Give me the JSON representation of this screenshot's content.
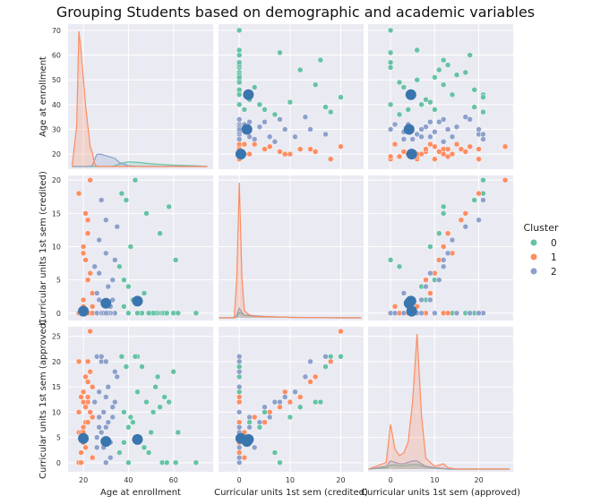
{
  "chart_data": {
    "type": "scatter",
    "title": "Grouping Students based on demographic and academic variables",
    "variables": [
      {
        "label": "Age at enrollment",
        "xlim": [
          13.2,
          77.6
        ],
        "ylim": [
          13.9,
          72.5
        ],
        "xticks": [
          20,
          40,
          60
        ],
        "yticks": [
          20,
          30,
          40,
          50,
          60,
          70
        ]
      },
      {
        "label": "Curricular units 1st sem (credited)",
        "xlim": [
          -4.1,
          24.5
        ],
        "ylim": [
          -1.1,
          20.7
        ],
        "xticks": [
          0,
          10,
          20
        ],
        "yticks": [
          0,
          5,
          10,
          15,
          20
        ]
      },
      {
        "label": "Curricular units 1st sem (approved)",
        "xlim": [
          -5.1,
          27.8
        ],
        "ylim": [
          -1.8,
          26.9
        ],
        "xticks": [
          0,
          10,
          20
        ],
        "yticks": [
          0,
          5,
          10,
          15,
          20,
          25
        ]
      }
    ],
    "legend": {
      "title": "Cluster",
      "placement": "right",
      "entries": [
        "0",
        "1",
        "2"
      ]
    },
    "colors": {
      "0": "#66c2a5",
      "1": "#fc8d62",
      "2": "#8da0cb",
      "centroid": "#3a75ae",
      "panel_bg": "#eaeaf2",
      "grid": "#ffffff"
    },
    "grid": true,
    "point_fields": [
      "age",
      "credited",
      "approved",
      "cluster"
    ],
    "points": [
      [
        18,
        0,
        0,
        1
      ],
      [
        18,
        0,
        6,
        1
      ],
      [
        19,
        0,
        5,
        1
      ],
      [
        19,
        0,
        6,
        1
      ],
      [
        20,
        0,
        7,
        1
      ],
      [
        20,
        1,
        6,
        1
      ],
      [
        21,
        0,
        8,
        1
      ],
      [
        22,
        0,
        12,
        1
      ],
      [
        18,
        0,
        10,
        1
      ],
      [
        19,
        0,
        13,
        1
      ],
      [
        20,
        2,
        5,
        1
      ],
      [
        21,
        0,
        3,
        1
      ],
      [
        22,
        5,
        8,
        1
      ],
      [
        23,
        0,
        18,
        1
      ],
      [
        22,
        0,
        20,
        1
      ],
      [
        23,
        20,
        26,
        1
      ],
      [
        19,
        0,
        0,
        1
      ],
      [
        24,
        3,
        9,
        1
      ],
      [
        20,
        10,
        12,
        1
      ],
      [
        21,
        8,
        11,
        1
      ],
      [
        22,
        12,
        13,
        1
      ],
      [
        19,
        0,
        2,
        1
      ],
      [
        24,
        0,
        15,
        1
      ],
      [
        21,
        15,
        17,
        1
      ],
      [
        18,
        18,
        20,
        1
      ],
      [
        20,
        0,
        4,
        1
      ],
      [
        23,
        6,
        10,
        1
      ],
      [
        24,
        1,
        1,
        1
      ],
      [
        20,
        9,
        14,
        1
      ],
      [
        22,
        14,
        16,
        1
      ],
      [
        26,
        0,
        5,
        2
      ],
      [
        28,
        0,
        6,
        2
      ],
      [
        30,
        0,
        0,
        2
      ],
      [
        32,
        1,
        4,
        2
      ],
      [
        27,
        2,
        7,
        2
      ],
      [
        29,
        0,
        10,
        2
      ],
      [
        31,
        4,
        8,
        2
      ],
      [
        33,
        5,
        11,
        2
      ],
      [
        26,
        0,
        21,
        2
      ],
      [
        28,
        0,
        20,
        2
      ],
      [
        30,
        9,
        13,
        2
      ],
      [
        34,
        0,
        18,
        2
      ],
      [
        25,
        7,
        12,
        2
      ],
      [
        27,
        11,
        14,
        2
      ],
      [
        35,
        13,
        17,
        2
      ],
      [
        29,
        0,
        3,
        2
      ],
      [
        32,
        0,
        1,
        2
      ],
      [
        26,
        3,
        3,
        2
      ],
      [
        30,
        14,
        20,
        2
      ],
      [
        28,
        17,
        21,
        2
      ],
      [
        33,
        2,
        9,
        2
      ],
      [
        31,
        0,
        15,
        2
      ],
      [
        27,
        6,
        9,
        2
      ],
      [
        34,
        8,
        12,
        2
      ],
      [
        30,
        0,
        7,
        2
      ],
      [
        40,
        0,
        0,
        0
      ],
      [
        45,
        0,
        5,
        0
      ],
      [
        50,
        0,
        6,
        0
      ],
      [
        38,
        1,
        4,
        0
      ],
      [
        42,
        2,
        8,
        0
      ],
      [
        55,
        0,
        0,
        0
      ],
      [
        60,
        0,
        18,
        0
      ],
      [
        44,
        0,
        21,
        0
      ],
      [
        46,
        0,
        19,
        0
      ],
      [
        53,
        0,
        17,
        0
      ],
      [
        52,
        0,
        15,
        0
      ],
      [
        56,
        0,
        13,
        0
      ],
      [
        62,
        0,
        6,
        0
      ],
      [
        70,
        0,
        0,
        0
      ],
      [
        38,
        5,
        10,
        0
      ],
      [
        41,
        10,
        9,
        0
      ],
      [
        36,
        7,
        2,
        0
      ],
      [
        48,
        15,
        12,
        0
      ],
      [
        58,
        16,
        12,
        0
      ],
      [
        43,
        20,
        21,
        0
      ],
      [
        39,
        17,
        19,
        0
      ],
      [
        37,
        18,
        21,
        0
      ],
      [
        47,
        3,
        3,
        0
      ],
      [
        54,
        12,
        11,
        0
      ],
      [
        51,
        0,
        10,
        0
      ],
      [
        40,
        4,
        7,
        0
      ],
      [
        61,
        8,
        0,
        0
      ],
      [
        57,
        0,
        0,
        0
      ],
      [
        44,
        0,
        14,
        0
      ],
      [
        49,
        0,
        2,
        0
      ]
    ],
    "centroids": [
      [
        20,
        0.3,
        4.8
      ],
      [
        30,
        1.5,
        4.2
      ],
      [
        44,
        1.8,
        4.6
      ]
    ],
    "density": [
      {
        "x": [
          15,
          17,
          18,
          19,
          20,
          21,
          22,
          23,
          24,
          25,
          26,
          28,
          30,
          32,
          34,
          36,
          40,
          45,
          50,
          55,
          60,
          65,
          70,
          75
        ],
        "series": {
          "1": [
            0,
            0.3,
            1.0,
            0.85,
            0.65,
            0.45,
            0.3,
            0.15,
            0.1,
            0.02,
            0,
            0,
            0,
            0,
            0,
            0,
            0,
            0,
            0,
            0,
            0,
            0,
            0,
            0
          ],
          "2": [
            0,
            0,
            0,
            0,
            0,
            0,
            0,
            0,
            0.01,
            0.05,
            0.09,
            0.09,
            0.08,
            0.07,
            0.06,
            0.03,
            0.005,
            0,
            0,
            0,
            0,
            0,
            0,
            0
          ],
          "0": [
            0,
            0,
            0,
            0,
            0,
            0,
            0,
            0,
            0,
            0,
            0,
            0,
            0,
            0,
            0.005,
            0.02,
            0.035,
            0.03,
            0.02,
            0.015,
            0.01,
            0.007,
            0.005,
            0
          ]
        }
      },
      {
        "x": [
          -4,
          -1,
          -0.5,
          0,
          0.5,
          1,
          2,
          3,
          5,
          8,
          10,
          15,
          20,
          24
        ],
        "series": {
          "1": [
            0,
            0,
            0.3,
            1.0,
            0.3,
            0.05,
            0.02,
            0.01,
            0.01,
            0.005,
            0.003,
            0.002,
            0,
            0
          ],
          "2": [
            0,
            0,
            0.02,
            0.07,
            0.04,
            0.02,
            0.02,
            0.015,
            0.01,
            0.005,
            0.003,
            0.001,
            0,
            0
          ],
          "0": [
            0,
            0,
            0.01,
            0.04,
            0.03,
            0.02,
            0.015,
            0.01,
            0.008,
            0.005,
            0.003,
            0.001,
            0,
            0
          ]
        }
      },
      {
        "x": [
          -5,
          -1,
          0,
          1,
          2,
          3,
          4,
          5,
          6,
          7,
          8,
          10,
          12,
          13,
          15,
          20,
          27
        ],
        "series": {
          "1": [
            0,
            0.05,
            0.33,
            0.15,
            0.1,
            0.12,
            0.2,
            0.5,
            1.0,
            0.4,
            0.08,
            0.02,
            0.04,
            0.01,
            0,
            0,
            0
          ],
          "2": [
            0,
            0.02,
            0.06,
            0.05,
            0.04,
            0.04,
            0.05,
            0.06,
            0.06,
            0.04,
            0.02,
            0.01,
            0.005,
            0,
            0,
            0,
            0
          ],
          "0": [
            0,
            0.01,
            0.03,
            0.03,
            0.025,
            0.025,
            0.03,
            0.035,
            0.035,
            0.025,
            0.015,
            0.005,
            0.002,
            0,
            0,
            0,
            0
          ]
        }
      }
    ]
  }
}
